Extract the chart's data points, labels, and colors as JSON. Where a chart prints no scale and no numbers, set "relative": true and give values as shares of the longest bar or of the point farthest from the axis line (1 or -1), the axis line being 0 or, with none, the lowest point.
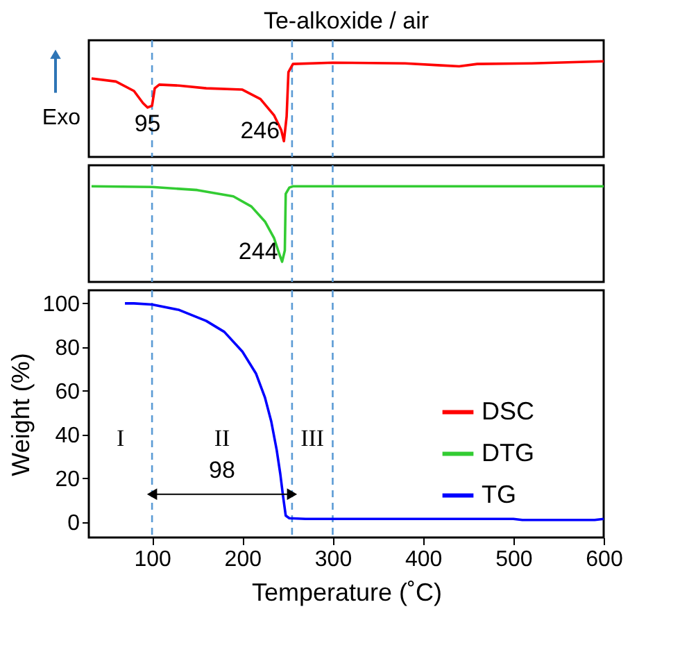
{
  "chart_data": [
    {
      "type": "line",
      "title": "Te-alkoxide / air",
      "relative": true,
      "xlim": [
        30,
        600
      ],
      "tick_labels": false,
      "grid": false,
      "legend": "right",
      "line_style": "solid",
      "marker": "none",
      "annotations": [
        "Exo",
        {
          "text": "95",
          "x": 95,
          "y": 0.517
        },
        {
          "text": "246",
          "x": 246,
          "y": 0.165
        }
      ],
      "ref_lines": [
        {
          "axis": "x",
          "value": 100,
          "color": "#5b9bd5",
          "line_style": "dashed"
        },
        {
          "axis": "x",
          "value": 255,
          "color": "#5b9bd5",
          "line_style": "dashed"
        },
        {
          "axis": "x",
          "value": 300,
          "color": "#5b9bd5",
          "line_style": "dashed"
        }
      ],
      "series": [
        {
          "name": "DSC",
          "color": "#ff0000",
          "x": [
            33,
            60,
            80,
            90,
            95,
            100,
            103,
            108,
            130,
            160,
            200,
            220,
            235,
            243,
            246,
            249,
            251,
            256,
            300,
            380,
            420,
            440,
            460,
            520,
            600
          ],
          "values": [
            0.821,
            0.789,
            0.69,
            0.563,
            0.517,
            0.535,
            0.718,
            0.756,
            0.746,
            0.718,
            0.704,
            0.606,
            0.437,
            0.282,
            0.165,
            0.423,
            0.887,
            0.972,
            0.986,
            0.979,
            0.958,
            0.948,
            0.972,
            0.979,
            1
          ]
        }
      ]
    },
    {
      "type": "line",
      "relative": true,
      "xlim": [
        30,
        600
      ],
      "tick_labels": false,
      "grid": false,
      "legend": "right",
      "line_style": "solid",
      "marker": "none",
      "annotations": [
        {
          "text": "244",
          "x": 244,
          "y": 0.211
        }
      ],
      "ref_lines": [
        {
          "axis": "x",
          "value": 100,
          "color": "#5b9bd5",
          "line_style": "dashed"
        },
        {
          "axis": "x",
          "value": 255,
          "color": "#5b9bd5",
          "line_style": "dashed"
        },
        {
          "axis": "x",
          "value": 300,
          "color": "#5b9bd5",
          "line_style": "dashed"
        }
      ],
      "series": [
        {
          "name": "DTG",
          "color": "#33cc33",
          "x": [
            33,
            100,
            150,
            190,
            210,
            225,
            235,
            241,
            244,
            247,
            248,
            252,
            256,
            600
          ],
          "values": [
            1,
            0.993,
            0.961,
            0.895,
            0.789,
            0.632,
            0.461,
            0.289,
            0.211,
            0.329,
            0.921,
            0.987,
            1,
            1
          ]
        }
      ]
    },
    {
      "type": "line",
      "xlabel": "Temperature (˚C)",
      "ylabel": "Weight (%)",
      "xlim": [
        30,
        600
      ],
      "ylim": [
        -7,
        106
      ],
      "xticks": [
        100,
        200,
        300,
        400,
        500,
        600
      ],
      "yticks": [
        0,
        20,
        40,
        60,
        80,
        100
      ],
      "grid": false,
      "legend": "right",
      "line_style": "solid",
      "marker": "none",
      "annotations": [
        "I",
        "II",
        "III",
        "98"
      ],
      "ref_lines": [
        {
          "axis": "x",
          "value": 100,
          "color": "#5b9bd5",
          "line_style": "dashed"
        },
        {
          "axis": "x",
          "value": 255,
          "color": "#5b9bd5",
          "line_style": "dashed"
        },
        {
          "axis": "x",
          "value": 300,
          "color": "#5b9bd5",
          "line_style": "dashed"
        }
      ],
      "series": [
        {
          "name": "TG",
          "color": "#0000ff",
          "x": [
            70,
            80,
            100,
            130,
            160,
            180,
            200,
            215,
            225,
            232,
            238,
            242,
            245,
            248,
            252,
            270,
            500,
            510,
            590,
            600
          ],
          "values": [
            100,
            100,
            99.5,
            97,
            92,
            87,
            78,
            68,
            57,
            46,
            33,
            22,
            12,
            3,
            1.8,
            1.5,
            1.5,
            1,
            1,
            1.5
          ]
        }
      ]
    }
  ]
}
